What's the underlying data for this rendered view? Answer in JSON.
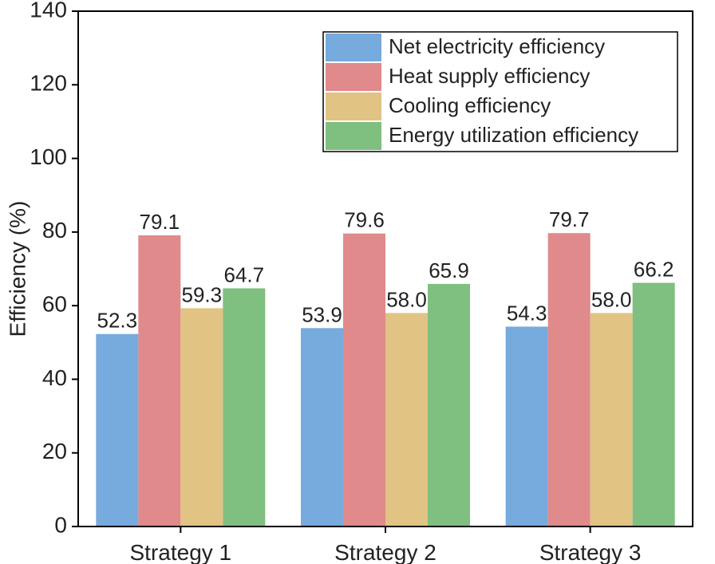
{
  "chart_data": {
    "type": "bar",
    "title": "",
    "xlabel": "",
    "ylabel": "Efficiency (%)",
    "ylim": [
      0,
      140
    ],
    "yticks": [
      0,
      20,
      40,
      60,
      80,
      100,
      120,
      140
    ],
    "categories": [
      "Strategy 1",
      "Strategy 2",
      "Strategy 3"
    ],
    "series": [
      {
        "name": "Net electricity efficiency",
        "color": "#77aadd",
        "values": [
          52.3,
          53.9,
          54.3
        ],
        "labels": [
          "52.3",
          "53.9",
          "54.3"
        ]
      },
      {
        "name": "Heat supply efficiency",
        "color": "#e08a8c",
        "values": [
          79.1,
          79.6,
          79.7
        ],
        "labels": [
          "79.1",
          "79.6",
          "79.7"
        ]
      },
      {
        "name": "Cooling efficiency",
        "color": "#e1c384",
        "values": [
          59.3,
          58.0,
          58.0
        ],
        "labels": [
          "59.3",
          "58.0",
          "58.0"
        ]
      },
      {
        "name": "Energy utilization efficiency",
        "color": "#7fbf7f",
        "values": [
          64.7,
          65.9,
          66.2
        ],
        "labels": [
          "64.7",
          "65.9",
          "66.2"
        ]
      }
    ],
    "legend_position": "top-right",
    "grid": false,
    "data_labels": true
  }
}
